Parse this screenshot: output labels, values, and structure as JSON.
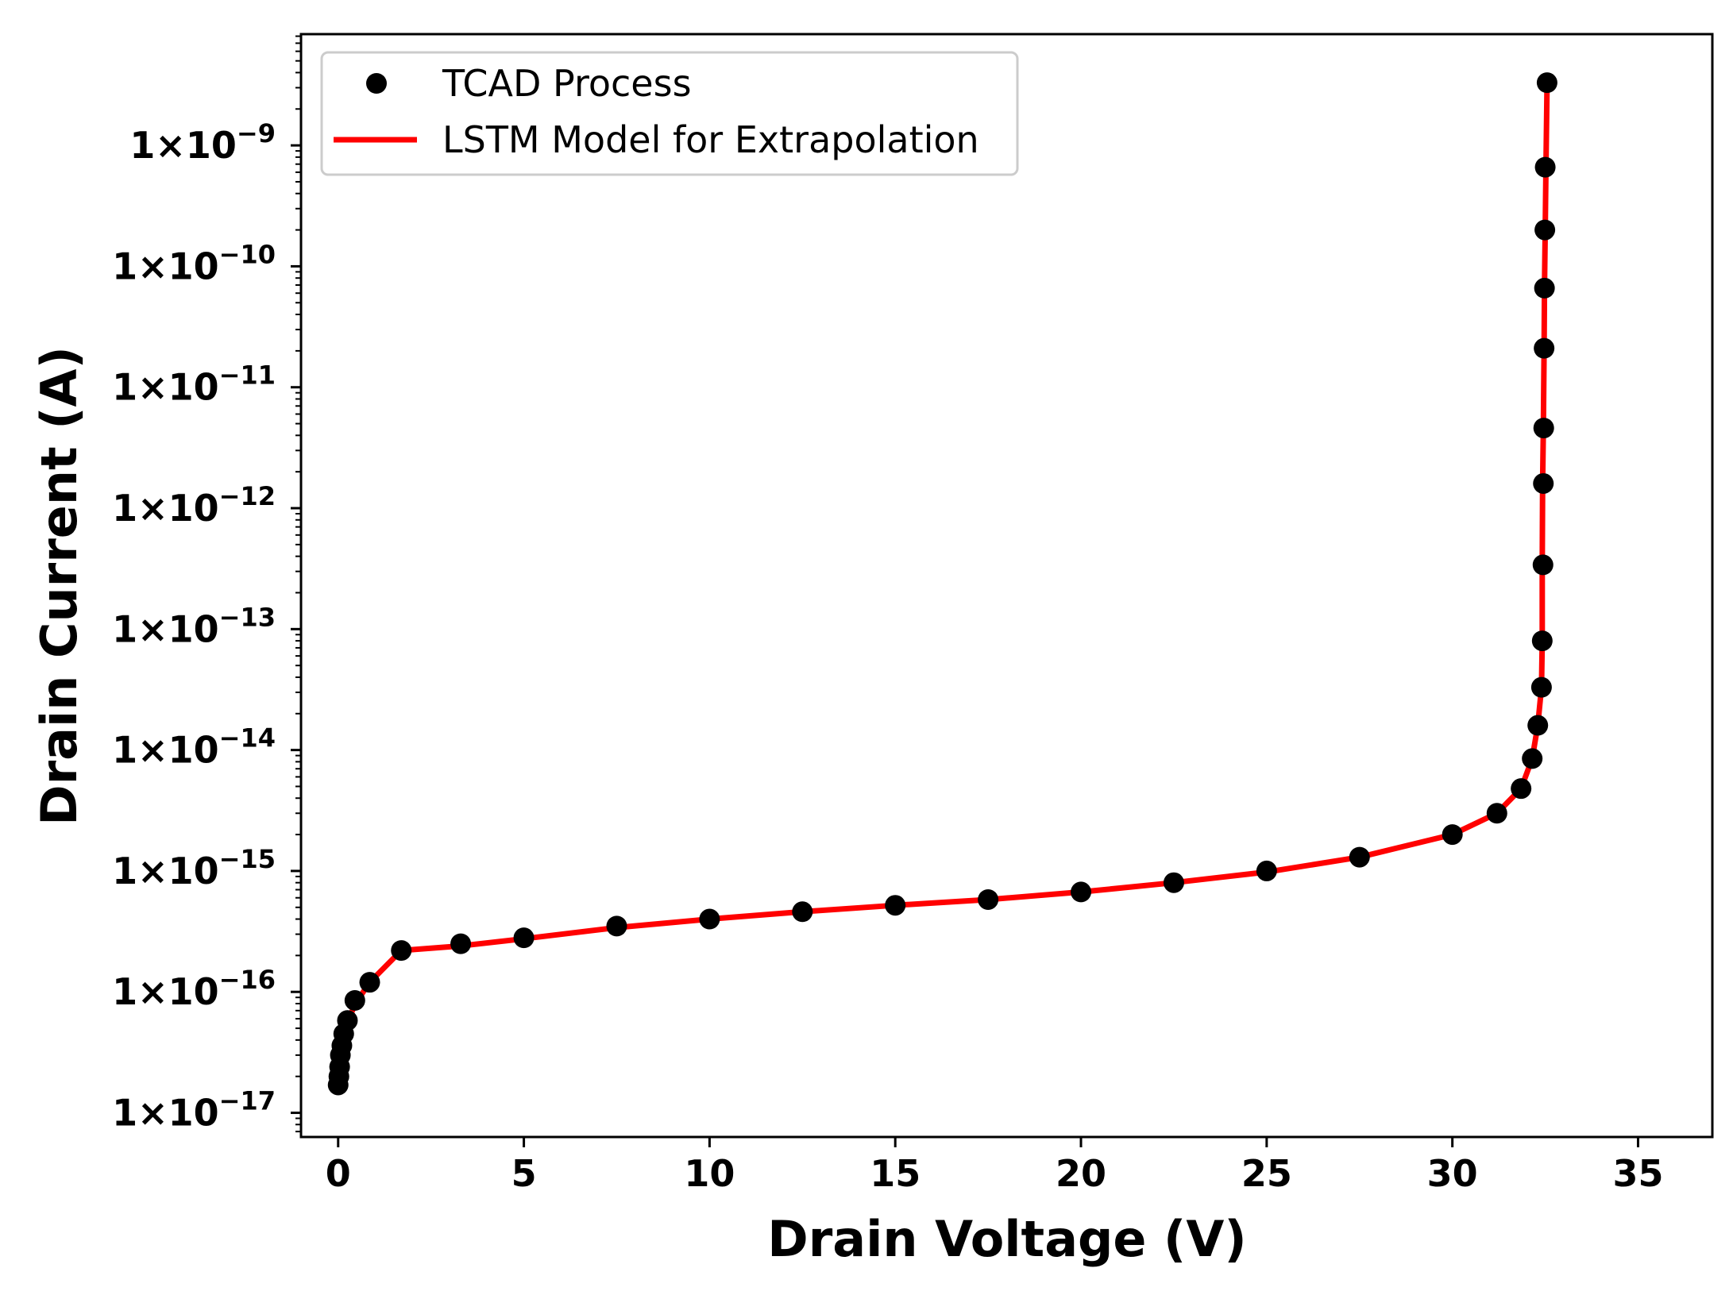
{
  "chart_data": {
    "type": "line",
    "xlabel": "Drain Voltage (V)",
    "ylabel": "Drain Current (A)",
    "xlim": [
      -1,
      37
    ],
    "ylim_log10": [
      -17.2,
      -8.08
    ],
    "x_ticks": [
      0,
      5,
      10,
      15,
      20,
      25,
      30,
      35
    ],
    "y_ticks": [
      {
        "exp": -17,
        "base": "1×10",
        "sup": "−17"
      },
      {
        "exp": -16,
        "base": "1×10",
        "sup": "−16"
      },
      {
        "exp": -15,
        "base": "1×10",
        "sup": "−15"
      },
      {
        "exp": -14,
        "base": "1×10",
        "sup": "−14"
      },
      {
        "exp": -13,
        "base": "1×10",
        "sup": "−13"
      },
      {
        "exp": -12,
        "base": "1×10",
        "sup": "−12"
      },
      {
        "exp": -11,
        "base": "1×10",
        "sup": "−11"
      },
      {
        "exp": -10,
        "base": "1×10",
        "sup": "−10"
      },
      {
        "exp": -9,
        "base": "1×10",
        "sup": "−9"
      }
    ],
    "legend": {
      "location": "top-left",
      "entries": [
        {
          "label": "TCAD Process",
          "marker": "circle",
          "color": "#000000"
        },
        {
          "label": "LSTM Model for Extrapolation",
          "marker": "line",
          "color": "#ff0000"
        }
      ]
    },
    "series": [
      {
        "name": "TCAD Process",
        "kind": "scatter",
        "color": "#000000",
        "points": [
          [
            0.0,
            1.7e-17
          ],
          [
            0.02,
            2e-17
          ],
          [
            0.04,
            2.4e-17
          ],
          [
            0.06,
            3e-17
          ],
          [
            0.1,
            3.6e-17
          ],
          [
            0.15,
            4.5e-17
          ],
          [
            0.25,
            5.8e-17
          ],
          [
            0.45,
            8.5e-17
          ],
          [
            0.85,
            1.2e-16
          ],
          [
            1.7,
            2.2e-16
          ],
          [
            3.3,
            2.5e-16
          ],
          [
            5.0,
            2.8e-16
          ],
          [
            7.5,
            3.5e-16
          ],
          [
            10.0,
            4e-16
          ],
          [
            12.5,
            4.6e-16
          ],
          [
            15.0,
            5.2e-16
          ],
          [
            17.5,
            5.8e-16
          ],
          [
            20.0,
            6.7e-16
          ],
          [
            22.5,
            8e-16
          ],
          [
            25.0,
            1e-15
          ],
          [
            27.5,
            1.3e-15
          ],
          [
            30.0,
            2e-15
          ],
          [
            31.2,
            3e-15
          ],
          [
            31.85,
            4.8e-15
          ],
          [
            32.15,
            8.5e-15
          ],
          [
            32.3,
            1.6e-14
          ],
          [
            32.4,
            3.3e-14
          ],
          [
            32.42,
            8e-14
          ],
          [
            32.44,
            3.4e-13
          ],
          [
            32.45,
            1.6e-12
          ],
          [
            32.46,
            4.6e-12
          ],
          [
            32.47,
            2.1e-11
          ],
          [
            32.48,
            6.6e-11
          ],
          [
            32.49,
            2e-10
          ],
          [
            32.5,
            6.6e-10
          ],
          [
            32.55,
            3.3e-09
          ]
        ]
      },
      {
        "name": "LSTM Model for Extrapolation",
        "kind": "line",
        "color": "#ff0000",
        "points": [
          [
            0.0,
            1.7e-17
          ],
          [
            0.03,
            2.2e-17
          ],
          [
            0.07,
            3.1e-17
          ],
          [
            0.15,
            4.5e-17
          ],
          [
            0.3,
            6.2e-17
          ],
          [
            0.5,
            8.3e-17
          ],
          [
            0.85,
            1.2e-16
          ],
          [
            1.7,
            2.2e-16
          ],
          [
            3.3,
            2.4e-16
          ],
          [
            5.0,
            2.75e-16
          ],
          [
            7.5,
            3.4e-16
          ],
          [
            10.0,
            4e-16
          ],
          [
            12.5,
            4.6e-16
          ],
          [
            15.0,
            5.2e-16
          ],
          [
            17.5,
            5.8e-16
          ],
          [
            20.0,
            6.7e-16
          ],
          [
            22.5,
            8e-16
          ],
          [
            25.0,
            9.8e-16
          ],
          [
            27.5,
            1.3e-15
          ],
          [
            30.0,
            2e-15
          ],
          [
            31.2,
            3e-15
          ],
          [
            31.85,
            4.8e-15
          ],
          [
            32.15,
            8.5e-15
          ],
          [
            32.3,
            1.6e-14
          ],
          [
            32.4,
            3.3e-14
          ],
          [
            32.42,
            8e-14
          ],
          [
            32.42,
            3.4e-13
          ],
          [
            32.43,
            1.6e-12
          ],
          [
            32.45,
            4.6e-12
          ],
          [
            32.47,
            2.1e-11
          ],
          [
            32.48,
            6.6e-11
          ],
          [
            32.5,
            2e-10
          ],
          [
            32.52,
            6.6e-10
          ],
          [
            32.55,
            3.3e-09
          ]
        ]
      }
    ]
  }
}
